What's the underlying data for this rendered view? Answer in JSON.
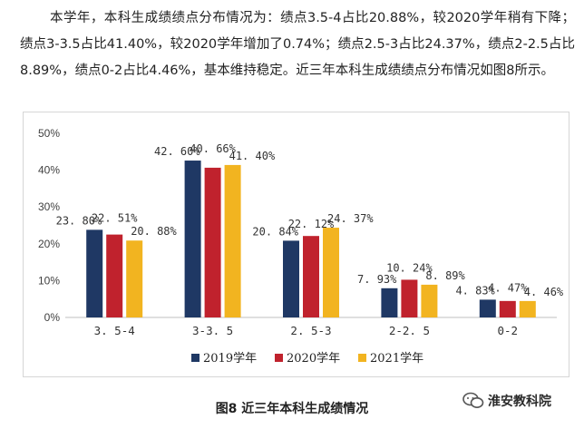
{
  "paragraph": "本学年，本科生成绩绩点分布情况为：绩点3.5-4占比20.88%，较2020学年稍有下降；绩点3-3.5占比41.40%，较2020学年增加了0.74%；绩点2.5-3占比24.37%，绩点2-2.5占比8.89%，绩点0-2占比4.46%，基本维持稳定。近三年本科生成绩绩点分布情况如图8所示。",
  "caption": "图8 近三年本科生成绩情况",
  "watermark": "淮安教科院",
  "chart_data": {
    "type": "bar",
    "title": "",
    "xlabel": "",
    "ylabel": "",
    "categories": [
      "3.5-4",
      "3-3.5",
      "2.5-3",
      "2-2.5",
      "0-2"
    ],
    "category_labels": [
      "3. 5-4",
      "3-3. 5",
      "2. 5-3",
      "2-2. 5",
      "0-2"
    ],
    "series": [
      {
        "name": "2019学年",
        "values": [
          23.8,
          42.6,
          20.84,
          7.93,
          4.83
        ],
        "labels": [
          "23. 80%",
          "42. 60%",
          "20. 84%",
          "7. 93%",
          "4. 83%"
        ],
        "color": "#1f3864"
      },
      {
        "name": "2020学年",
        "values": [
          22.51,
          40.66,
          22.12,
          10.24,
          4.47
        ],
        "labels": [
          "22. 51%",
          "40. 66%",
          "22. 12%",
          "10. 24%",
          "4. 47%"
        ],
        "color": "#c0222d"
      },
      {
        "name": "2021学年",
        "values": [
          20.88,
          41.4,
          24.37,
          8.89,
          4.46
        ],
        "labels": [
          "20. 88%",
          "41. 40%",
          "24. 37%",
          "8. 89%",
          "4. 46%"
        ],
        "color": "#f2b420"
      }
    ],
    "ylim": [
      0,
      50
    ],
    "yticks": [
      0,
      10,
      20,
      30,
      40,
      50
    ],
    "ytick_labels": [
      "0%",
      "10%",
      "20%",
      "30%",
      "40%",
      "50%"
    ],
    "grid": false,
    "legend": "bottom"
  }
}
